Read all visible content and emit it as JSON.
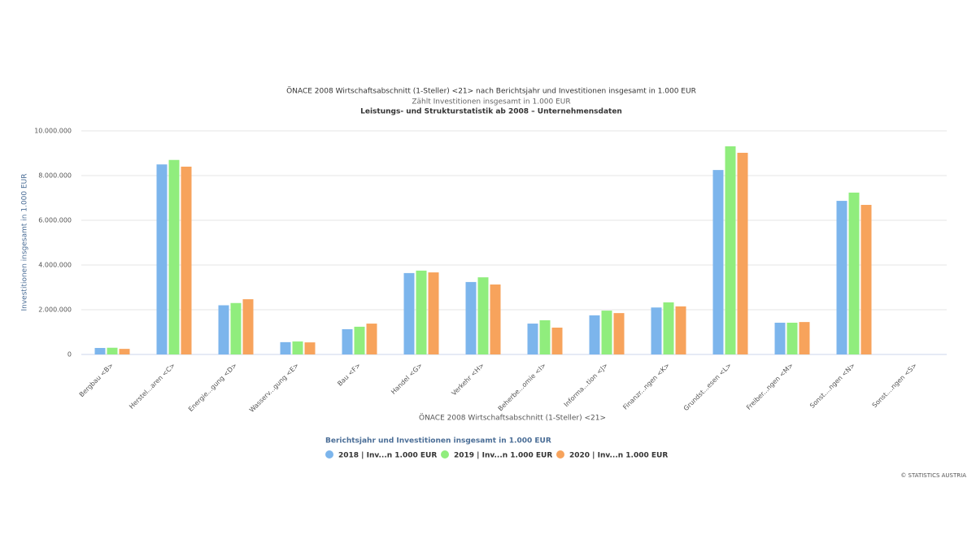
{
  "chart_data": {
    "type": "bar",
    "title": "ÖNACE 2008 Wirtschaftsabschnitt (1-Steller) <21> nach Berichtsjahr und Investitionen insgesamt in 1.000 EUR",
    "subtitle": "Zählt Investitionen insgesamt in 1.000 EUR",
    "caption": "Leistungs- und Strukturstatistik ab 2008 – Unternehmensdaten",
    "x_label": "ÖNACE 2008 Wirtschaftsabschnitt (1-Steller) <21>",
    "y_label": "Investitionen insgesamt in 1.000 EUR",
    "legend_title": "Berichtsjahr und Investitionen insgesamt in 1.000 EUR",
    "credit": "© STATISTICS AUSTRIA",
    "categories": [
      "Bergbau <B>",
      "Herstel...aren <C>",
      "Energie...gung <D>",
      "Wasserv...gung <E>",
      "Bau <F>",
      "Handel <G>",
      "Verkehr <H>",
      "Beherbe...omie <I>",
      "Informa...tion <J>",
      "Finanzr...ngen <K>",
      "Grundst...esen <L>",
      "Freiber...ngen <M>",
      "Sonst....ngen <N>",
      "Sonst....ngen <S>"
    ],
    "series": [
      {
        "name": "2018 | Inv...n 1.000 EUR",
        "color": "#7cb5ec",
        "values": [
          290000,
          8500000,
          2200000,
          550000,
          1130000,
          3640000,
          3240000,
          1380000,
          1750000,
          2100000,
          8250000,
          1420000,
          6870000,
          null
        ]
      },
      {
        "name": "2019 | Inv...n 1.000 EUR",
        "color": "#90ed7d",
        "values": [
          300000,
          8700000,
          2300000,
          580000,
          1240000,
          3750000,
          3450000,
          1530000,
          1960000,
          2330000,
          9310000,
          1420000,
          7240000,
          null
        ]
      },
      {
        "name": "2020 | Inv...n 1.000 EUR",
        "color": "#f7a35c",
        "values": [
          250000,
          8400000,
          2470000,
          540000,
          1380000,
          3670000,
          3130000,
          1200000,
          1850000,
          2150000,
          9020000,
          1450000,
          6690000,
          null
        ]
      }
    ],
    "ylim": [
      0,
      10000000
    ],
    "yticks": [
      0,
      {
        "value": 2000000,
        "label": "2.000.000"
      },
      {
        "value": 4000000,
        "label": "4.000.000"
      },
      {
        "value": 6000000,
        "label": "6.000.000"
      },
      {
        "value": 8000000,
        "label": "8.000.000"
      },
      {
        "value": 10000000,
        "label": "10.000.000"
      }
    ],
    "grid": true
  }
}
